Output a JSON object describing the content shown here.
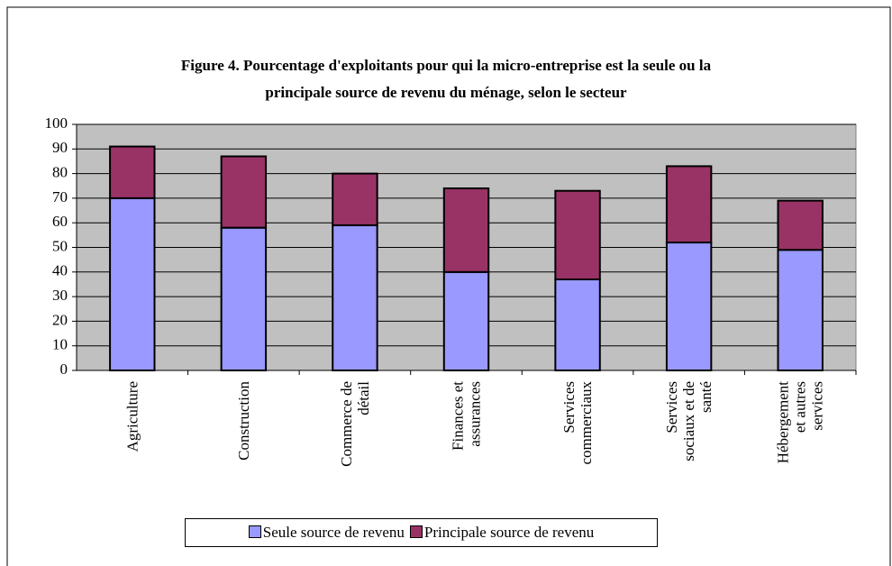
{
  "chart_data": {
    "type": "stacked_bar",
    "title": "Figure 4. Pourcentage d'exploitants pour qui la micro-entreprise est la seule ou la\nprincipale source de revenu du ménage, selon le secteur",
    "categories": [
      "Agriculture",
      "Construction",
      "Commerce de\ndétail",
      "Finances et\nassurances",
      "Services\ncommerciaux",
      "Services\nsociaux et de\nsanté",
      "Hébergement\net autres\nservices"
    ],
    "series": [
      {
        "name": "Seule source de revenu",
        "color": "#9999ff",
        "values": [
          70,
          58,
          59,
          40,
          37,
          52,
          49
        ]
      },
      {
        "name": "Principale source de revenu",
        "color": "#993366",
        "values": [
          21,
          29,
          21,
          34,
          36,
          31,
          20
        ]
      }
    ],
    "ylim": [
      0,
      100
    ],
    "yticks": [
      0,
      10,
      20,
      30,
      40,
      50,
      60,
      70,
      80,
      90,
      100
    ],
    "grid": true,
    "legend": "bottom"
  }
}
